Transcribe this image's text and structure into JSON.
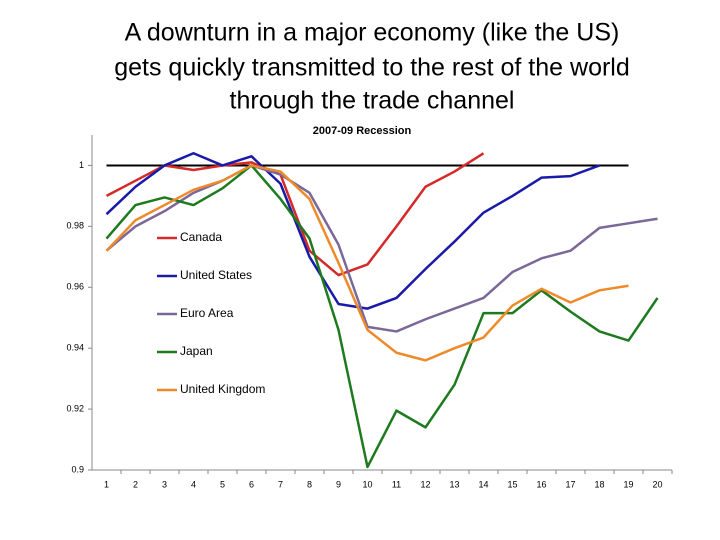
{
  "chart_data": {
    "type": "line",
    "title": [
      "A downturn in a major economy (like the US)",
      "gets quickly transmitted to the rest of the world",
      "through the trade channel"
    ],
    "subtitle": "2007-09 Recession",
    "categories": [
      "1",
      "2",
      "3",
      "4",
      "5",
      "6",
      "7",
      "8",
      "9",
      "10",
      "11",
      "12",
      "13",
      "14",
      "15",
      "16",
      "17",
      "18",
      "19",
      "20"
    ],
    "series": [
      {
        "name": "Canada",
        "color": "#d42a2a",
        "values": [
          0.99,
          0.995,
          1.0,
          0.9985,
          1.0,
          1.001,
          0.997,
          0.972,
          0.964,
          0.9675,
          0.98,
          0.993,
          0.998,
          1.004,
          null,
          null,
          null,
          null,
          null,
          null
        ]
      },
      {
        "name": "United States",
        "color": "#1a1aa8",
        "values": [
          0.984,
          0.993,
          1.0,
          1.004,
          1.0,
          1.003,
          0.994,
          0.97,
          0.9545,
          0.953,
          0.9565,
          0.966,
          0.975,
          0.9845,
          0.99,
          0.996,
          0.9965,
          1.0,
          null,
          null
        ]
      },
      {
        "name": "Euro Area",
        "color": "#7b6899",
        "values": [
          0.972,
          0.98,
          0.985,
          0.991,
          0.995,
          1.0,
          0.997,
          0.991,
          0.974,
          0.947,
          0.9455,
          0.9495,
          0.953,
          0.9565,
          0.965,
          0.9695,
          0.972,
          0.9795,
          0.981,
          0.9825
        ]
      },
      {
        "name": "Japan",
        "color": "#1e7a1e",
        "values": [
          0.976,
          0.987,
          0.9895,
          0.987,
          0.9925,
          1.0,
          0.989,
          0.976,
          0.946,
          0.901,
          0.9195,
          0.914,
          0.928,
          0.9515,
          0.9515,
          0.959,
          0.952,
          0.9455,
          0.9425,
          0.9565
        ]
      },
      {
        "name": "United Kingdom",
        "color": "#ee8a2a",
        "values": [
          0.972,
          0.982,
          0.987,
          0.992,
          0.995,
          1.0,
          0.998,
          0.989,
          0.968,
          0.946,
          0.9385,
          0.936,
          0.94,
          0.9435,
          0.954,
          0.9595,
          0.955,
          0.959,
          0.9605,
          null
        ]
      }
    ],
    "reference_line": 1,
    "ylim": [
      0.9,
      1.01
    ],
    "yticks": [
      0.9,
      0.92,
      0.94,
      0.96,
      0.98,
      1
    ],
    "legend": "left"
  }
}
